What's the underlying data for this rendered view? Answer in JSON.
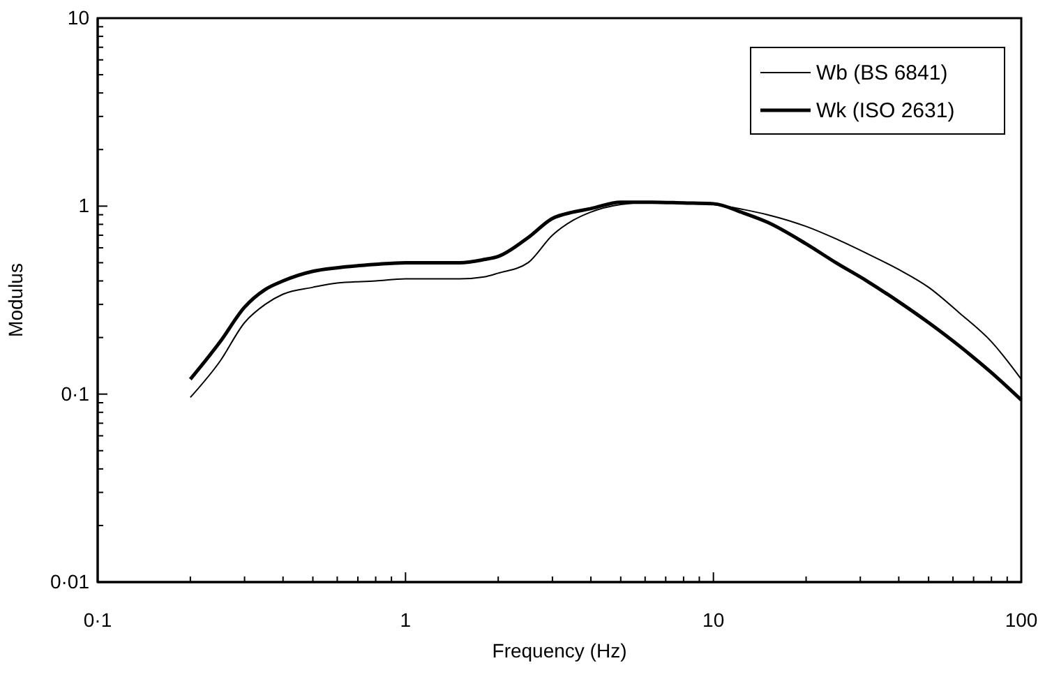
{
  "chart_data": {
    "type": "line",
    "xlabel": "Frequency (Hz)",
    "ylabel": "Modulus",
    "log": "xy",
    "legend": "top right",
    "grid": false,
    "xlim": [
      0.1,
      100
    ],
    "xticks": [
      {
        "value": 0.1,
        "label": "0·1"
      },
      1,
      10,
      100
    ],
    "ylim": [
      0.01,
      10
    ],
    "yticks": [
      {
        "value": 0.01,
        "label": "0·01"
      },
      {
        "value": 0.1,
        "label": "0·1"
      },
      1,
      10
    ],
    "series": [
      {
        "name": "Wb (BS 6841)",
        "color": "#000000",
        "x": [
          0.2,
          0.25,
          0.3,
          0.35,
          0.4,
          0.5,
          0.6,
          0.8,
          1,
          1.5,
          1.8,
          2,
          2.5,
          3,
          3.5,
          4,
          5,
          6.3,
          8,
          10,
          12.5,
          15,
          20,
          25,
          31.5,
          40,
          50,
          63,
          80,
          100
        ],
        "values": [
          0.096,
          0.15,
          0.24,
          0.3,
          0.34,
          0.37,
          0.39,
          0.4,
          0.41,
          0.41,
          0.42,
          0.44,
          0.5,
          0.7,
          0.84,
          0.93,
          1.02,
          1.05,
          1.04,
          1.02,
          0.96,
          0.9,
          0.78,
          0.67,
          0.56,
          0.46,
          0.37,
          0.27,
          0.19,
          0.12
        ]
      },
      {
        "name": "Wk (ISO 2631)",
        "color": "#000000",
        "x": [
          0.2,
          0.25,
          0.3,
          0.35,
          0.4,
          0.5,
          0.6,
          0.8,
          1,
          1.5,
          1.8,
          2,
          2.5,
          3,
          3.5,
          4,
          5,
          6.3,
          8,
          10,
          12.5,
          15,
          20,
          25,
          31.5,
          40,
          50,
          63,
          80,
          100
        ],
        "values": [
          0.12,
          0.19,
          0.29,
          0.36,
          0.4,
          0.45,
          0.47,
          0.49,
          0.5,
          0.5,
          0.52,
          0.54,
          0.68,
          0.86,
          0.93,
          0.97,
          1.05,
          1.05,
          1.04,
          1.03,
          0.92,
          0.82,
          0.63,
          0.5,
          0.4,
          0.31,
          0.24,
          0.18,
          0.13,
          0.093
        ]
      }
    ]
  }
}
